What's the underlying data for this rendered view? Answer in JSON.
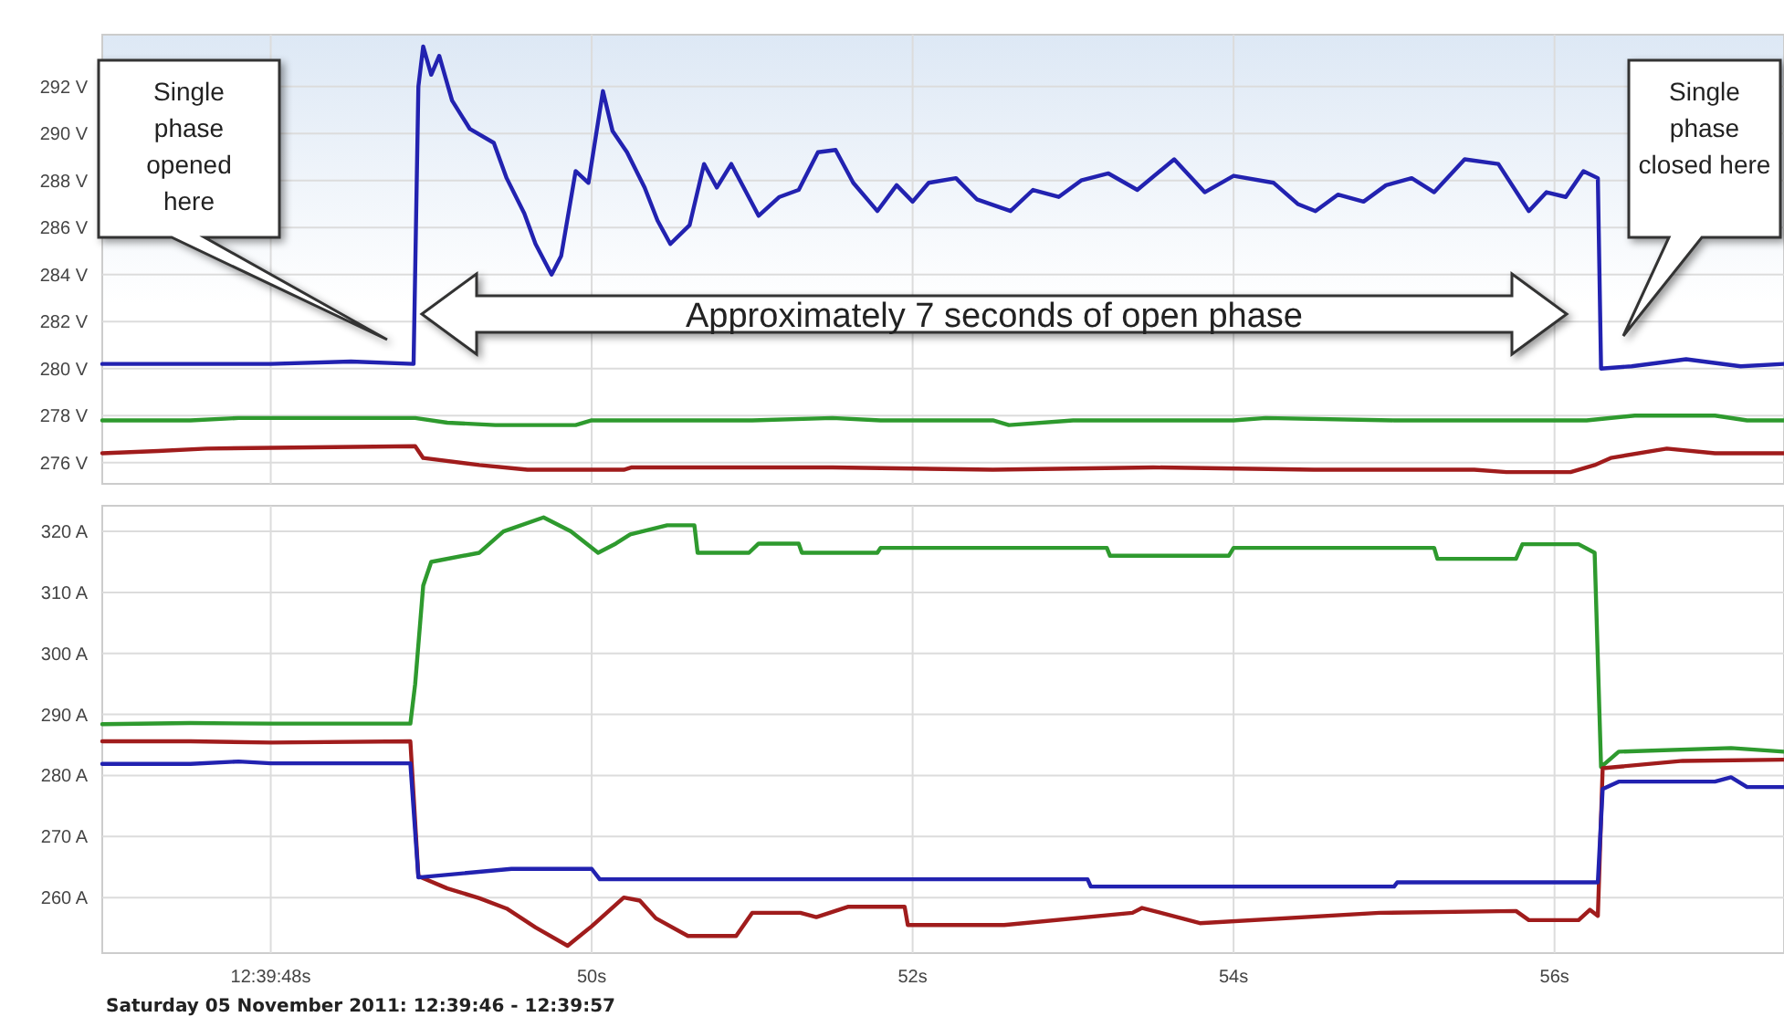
{
  "chart_data": [
    {
      "type": "line",
      "grid": true,
      "tick_labels": "y",
      "xlim": [
        46.95,
        57.43
      ],
      "xticks": [
        48,
        50,
        52,
        54,
        56
      ],
      "ylim": [
        275.1,
        294.2
      ],
      "yticks": [
        {
          "value": 276,
          "label": "276 V"
        },
        {
          "value": 278,
          "label": "278 V"
        },
        {
          "value": 280,
          "label": "280 V"
        },
        {
          "value": 282,
          "label": "282 V"
        },
        {
          "value": 284,
          "label": "284 V"
        },
        {
          "value": 286,
          "label": "286 V"
        },
        {
          "value": 288,
          "label": "288 V"
        },
        {
          "value": 290,
          "label": "290 V"
        },
        {
          "value": 292,
          "label": "292 V"
        }
      ],
      "series": [
        {
          "color": "#2222b0",
          "x": [
            46.95,
            48.0,
            48.5,
            48.89,
            48.92,
            48.95,
            49.0,
            49.05,
            49.13,
            49.24,
            49.39,
            49.47,
            49.58,
            49.65,
            49.75,
            49.81,
            49.9,
            49.98,
            50.07,
            50.13,
            50.22,
            50.33,
            50.41,
            50.49,
            50.61,
            50.7,
            50.78,
            50.87,
            51.04,
            51.17,
            51.29,
            51.41,
            51.52,
            51.63,
            51.78,
            51.9,
            52.0,
            52.1,
            52.27,
            52.4,
            52.61,
            52.75,
            52.91,
            53.05,
            53.22,
            53.4,
            53.63,
            53.82,
            54.0,
            54.25,
            54.4,
            54.51,
            54.65,
            54.81,
            54.95,
            55.11,
            55.25,
            55.44,
            55.65,
            55.84,
            55.95,
            56.07,
            56.18,
            56.27,
            56.29,
            56.48,
            56.82,
            57.16,
            57.43
          ],
          "values": [
            280.2,
            280.2,
            280.3,
            280.2,
            292.0,
            293.7,
            292.5,
            293.3,
            291.4,
            290.2,
            289.6,
            288.1,
            286.6,
            285.3,
            284.0,
            284.8,
            288.4,
            287.9,
            291.8,
            290.1,
            289.2,
            287.7,
            286.3,
            285.3,
            286.1,
            288.7,
            287.7,
            288.7,
            286.5,
            287.3,
            287.6,
            289.2,
            289.3,
            287.9,
            286.7,
            287.8,
            287.1,
            287.9,
            288.1,
            287.2,
            286.7,
            287.6,
            287.3,
            288.0,
            288.3,
            287.6,
            288.9,
            287.5,
            288.2,
            287.9,
            287.0,
            286.7,
            287.4,
            287.1,
            287.8,
            288.1,
            287.5,
            288.9,
            288.7,
            286.7,
            287.5,
            287.3,
            288.4,
            288.1,
            280.0,
            280.1,
            280.4,
            280.1,
            280.2
          ]
        },
        {
          "color": "#2e9a2e",
          "x": [
            46.95,
            47.5,
            47.8,
            48.5,
            48.9,
            49.1,
            49.4,
            49.9,
            50.0,
            51.0,
            51.5,
            51.8,
            52.5,
            52.6,
            53.0,
            54.0,
            54.2,
            55.0,
            56.2,
            56.5,
            57.0,
            57.2,
            57.43
          ],
          "values": [
            277.8,
            277.8,
            277.9,
            277.9,
            277.9,
            277.7,
            277.6,
            277.6,
            277.8,
            277.8,
            277.9,
            277.8,
            277.8,
            277.6,
            277.8,
            277.8,
            277.9,
            277.8,
            277.8,
            278.0,
            278.0,
            277.8,
            277.8
          ]
        },
        {
          "color": "#a01c1c",
          "x": [
            46.95,
            47.3,
            47.6,
            48.9,
            48.95,
            49.3,
            49.6,
            50.2,
            50.25,
            51.5,
            52.5,
            53.5,
            54.5,
            55.5,
            55.7,
            56.1,
            56.25,
            56.35,
            56.7,
            57.0,
            57.43
          ],
          "values": [
            276.4,
            276.5,
            276.6,
            276.7,
            276.2,
            275.9,
            275.7,
            275.7,
            275.8,
            275.8,
            275.7,
            275.8,
            275.7,
            275.7,
            275.6,
            275.6,
            275.9,
            276.2,
            276.6,
            276.4,
            276.4
          ]
        }
      ],
      "annotations": [
        "Single\nphase\nopened\nhere",
        "Single\nphase\nclosed here",
        "Approximately 7 seconds of open phase"
      ]
    },
    {
      "type": "line",
      "grid": true,
      "xlim": [
        46.95,
        57.43
      ],
      "xticks": [
        {
          "value": 48,
          "label": "12:39:48s"
        },
        {
          "value": 50,
          "label": "50s"
        },
        {
          "value": 52,
          "label": "52s"
        },
        {
          "value": 54,
          "label": "54s"
        },
        {
          "value": 56,
          "label": "56s"
        }
      ],
      "ylim": [
        250.9,
        324.2
      ],
      "yticks": [
        {
          "value": 260,
          "label": "260 A"
        },
        {
          "value": 270,
          "label": "270 A"
        },
        {
          "value": 280,
          "label": "280 A"
        },
        {
          "value": 290,
          "label": "290 A"
        },
        {
          "value": 300,
          "label": "300 A"
        },
        {
          "value": 310,
          "label": "310 A"
        },
        {
          "value": 320,
          "label": "320 A"
        }
      ],
      "series": [
        {
          "color": "#2e9a2e",
          "x": [
            46.95,
            47.5,
            48.0,
            48.87,
            48.9,
            48.95,
            49.0,
            49.3,
            49.45,
            49.7,
            49.87,
            50.04,
            50.15,
            50.24,
            50.47,
            50.64,
            50.66,
            50.98,
            51.04,
            51.29,
            51.31,
            51.78,
            51.8,
            53.21,
            53.23,
            53.97,
            54.0,
            55.25,
            55.27,
            55.76,
            55.8,
            56.15,
            56.25,
            56.29,
            56.4,
            57.1,
            57.43
          ],
          "values": [
            288.4,
            288.6,
            288.5,
            288.5,
            295.0,
            311.1,
            315.0,
            316.5,
            320.0,
            322.3,
            320.0,
            316.5,
            318.0,
            319.5,
            321.0,
            321.0,
            316.5,
            316.5,
            318.0,
            318.0,
            316.5,
            316.5,
            317.3,
            317.3,
            316.0,
            316.0,
            317.3,
            317.3,
            315.5,
            315.5,
            317.9,
            317.9,
            316.5,
            281.4,
            283.9,
            284.5,
            283.9
          ]
        },
        {
          "color": "#a01c1c",
          "x": [
            46.95,
            47.5,
            48.0,
            48.87,
            48.92,
            49.1,
            49.3,
            49.47,
            49.65,
            49.85,
            50.0,
            50.2,
            50.3,
            50.4,
            50.6,
            50.9,
            51.0,
            51.3,
            51.4,
            51.6,
            51.95,
            51.97,
            52.57,
            53.37,
            53.43,
            53.79,
            54.91,
            55.76,
            55.84,
            56.15,
            56.22,
            56.27,
            56.3,
            56.8,
            57.43
          ],
          "values": [
            285.6,
            285.6,
            285.4,
            285.6,
            263.5,
            261.5,
            259.9,
            258.2,
            255.1,
            252.1,
            255.3,
            260.0,
            259.5,
            256.6,
            253.7,
            253.7,
            257.5,
            257.5,
            256.8,
            258.5,
            258.5,
            255.5,
            255.5,
            257.5,
            258.3,
            255.8,
            257.5,
            257.8,
            256.3,
            256.3,
            258.0,
            257.0,
            281.2,
            282.4,
            282.6
          ]
        },
        {
          "color": "#2222b0",
          "x": [
            46.95,
            47.5,
            47.8,
            48.0,
            48.87,
            48.92,
            49.5,
            50.0,
            50.05,
            51.0,
            52.0,
            53.09,
            53.11,
            55.0,
            55.02,
            56.27,
            56.3,
            56.4,
            57.0,
            57.1,
            57.2,
            57.43
          ],
          "values": [
            281.9,
            281.9,
            282.3,
            282.0,
            282.0,
            263.3,
            264.7,
            264.7,
            263.0,
            263.0,
            263.0,
            263.0,
            261.8,
            261.8,
            262.5,
            262.5,
            277.8,
            279.0,
            279.0,
            279.7,
            278.1,
            278.1
          ]
        }
      ],
      "annotations": [
        "Saturday 05 November 2011: 12:39:46 - 12:39:57"
      ]
    }
  ]
}
